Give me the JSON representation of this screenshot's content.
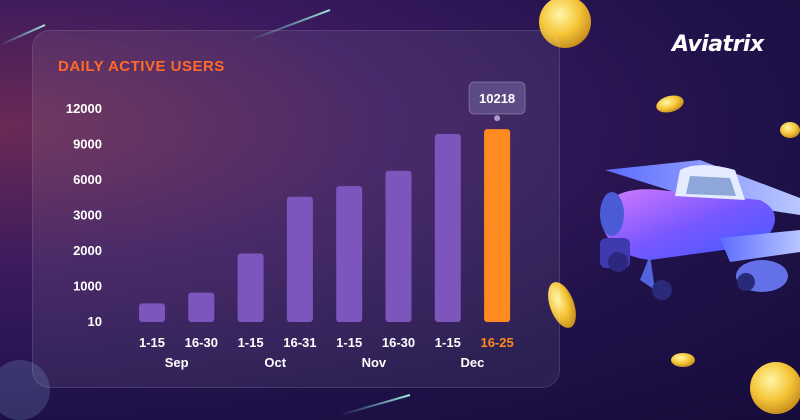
{
  "brand": {
    "name": "Aviatrix"
  },
  "colors": {
    "bar": "#7c55bd",
    "highlight": "#ff8a1f",
    "title": "#ff6a28",
    "tick_label": "#ffffff",
    "tooltip_bg": "#5c4a85"
  },
  "chart_data": {
    "type": "bar",
    "title": "DAILY ACTIVE USERS",
    "xlabel": "",
    "ylabel": "",
    "y_axis_scale": "non-linear categorical ticks",
    "yticks": [
      "10",
      "1000",
      "2000",
      "3000",
      "6000",
      "9000",
      "12000"
    ],
    "categories": [
      "1-15",
      "16-30",
      "1-15",
      "16-31",
      "1-15",
      "16-30",
      "1-15",
      "16-25"
    ],
    "months": [
      "Sep",
      "Oct",
      "Nov",
      "Dec"
    ],
    "values": [
      500,
      800,
      1900,
      4500,
      5400,
      6700,
      9800,
      10218
    ],
    "highlight_index": 7,
    "highlight_label": "10218",
    "grid": false,
    "legend": "none"
  }
}
